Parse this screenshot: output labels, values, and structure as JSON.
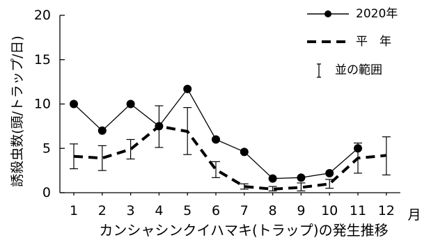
{
  "chart_data": {
    "type": "line",
    "title": "",
    "xlabel": "カンシャシンクイハマキ(トラップ)の発生推移",
    "x_unit": "月",
    "ylabel": "誘殺虫数(頭/トラップ/日)",
    "categories": [
      "1",
      "2",
      "3",
      "4",
      "5",
      "6",
      "7",
      "8",
      "9",
      "10",
      "11",
      "12"
    ],
    "ylim": [
      0,
      20
    ],
    "yticks": [
      "0",
      "5",
      "10",
      "15",
      "20"
    ],
    "grid": false,
    "legend_position": "top-right",
    "series": [
      {
        "name": "2020年",
        "style": "solid-line-filled-circle",
        "values": [
          10.0,
          7.0,
          10.0,
          7.5,
          11.7,
          6.0,
          4.6,
          1.6,
          1.7,
          2.2,
          5.0,
          null
        ]
      },
      {
        "name": "平　年",
        "style": "dashed",
        "values": [
          4.1,
          3.9,
          4.9,
          7.5,
          6.9,
          2.6,
          0.7,
          0.4,
          0.6,
          1.0,
          3.9,
          4.2
        ]
      }
    ],
    "range": {
      "name": "並の範囲",
      "low": [
        2.7,
        2.5,
        3.8,
        5.1,
        4.3,
        1.7,
        0.4,
        0.2,
        0.2,
        0.5,
        2.2,
        2.0
      ],
      "high": [
        5.5,
        5.3,
        6.0,
        9.8,
        9.6,
        3.5,
        1.0,
        0.7,
        1.1,
        1.5,
        5.6,
        6.3
      ]
    }
  },
  "colors": {
    "line": "#000000",
    "background": "#ffffff"
  }
}
